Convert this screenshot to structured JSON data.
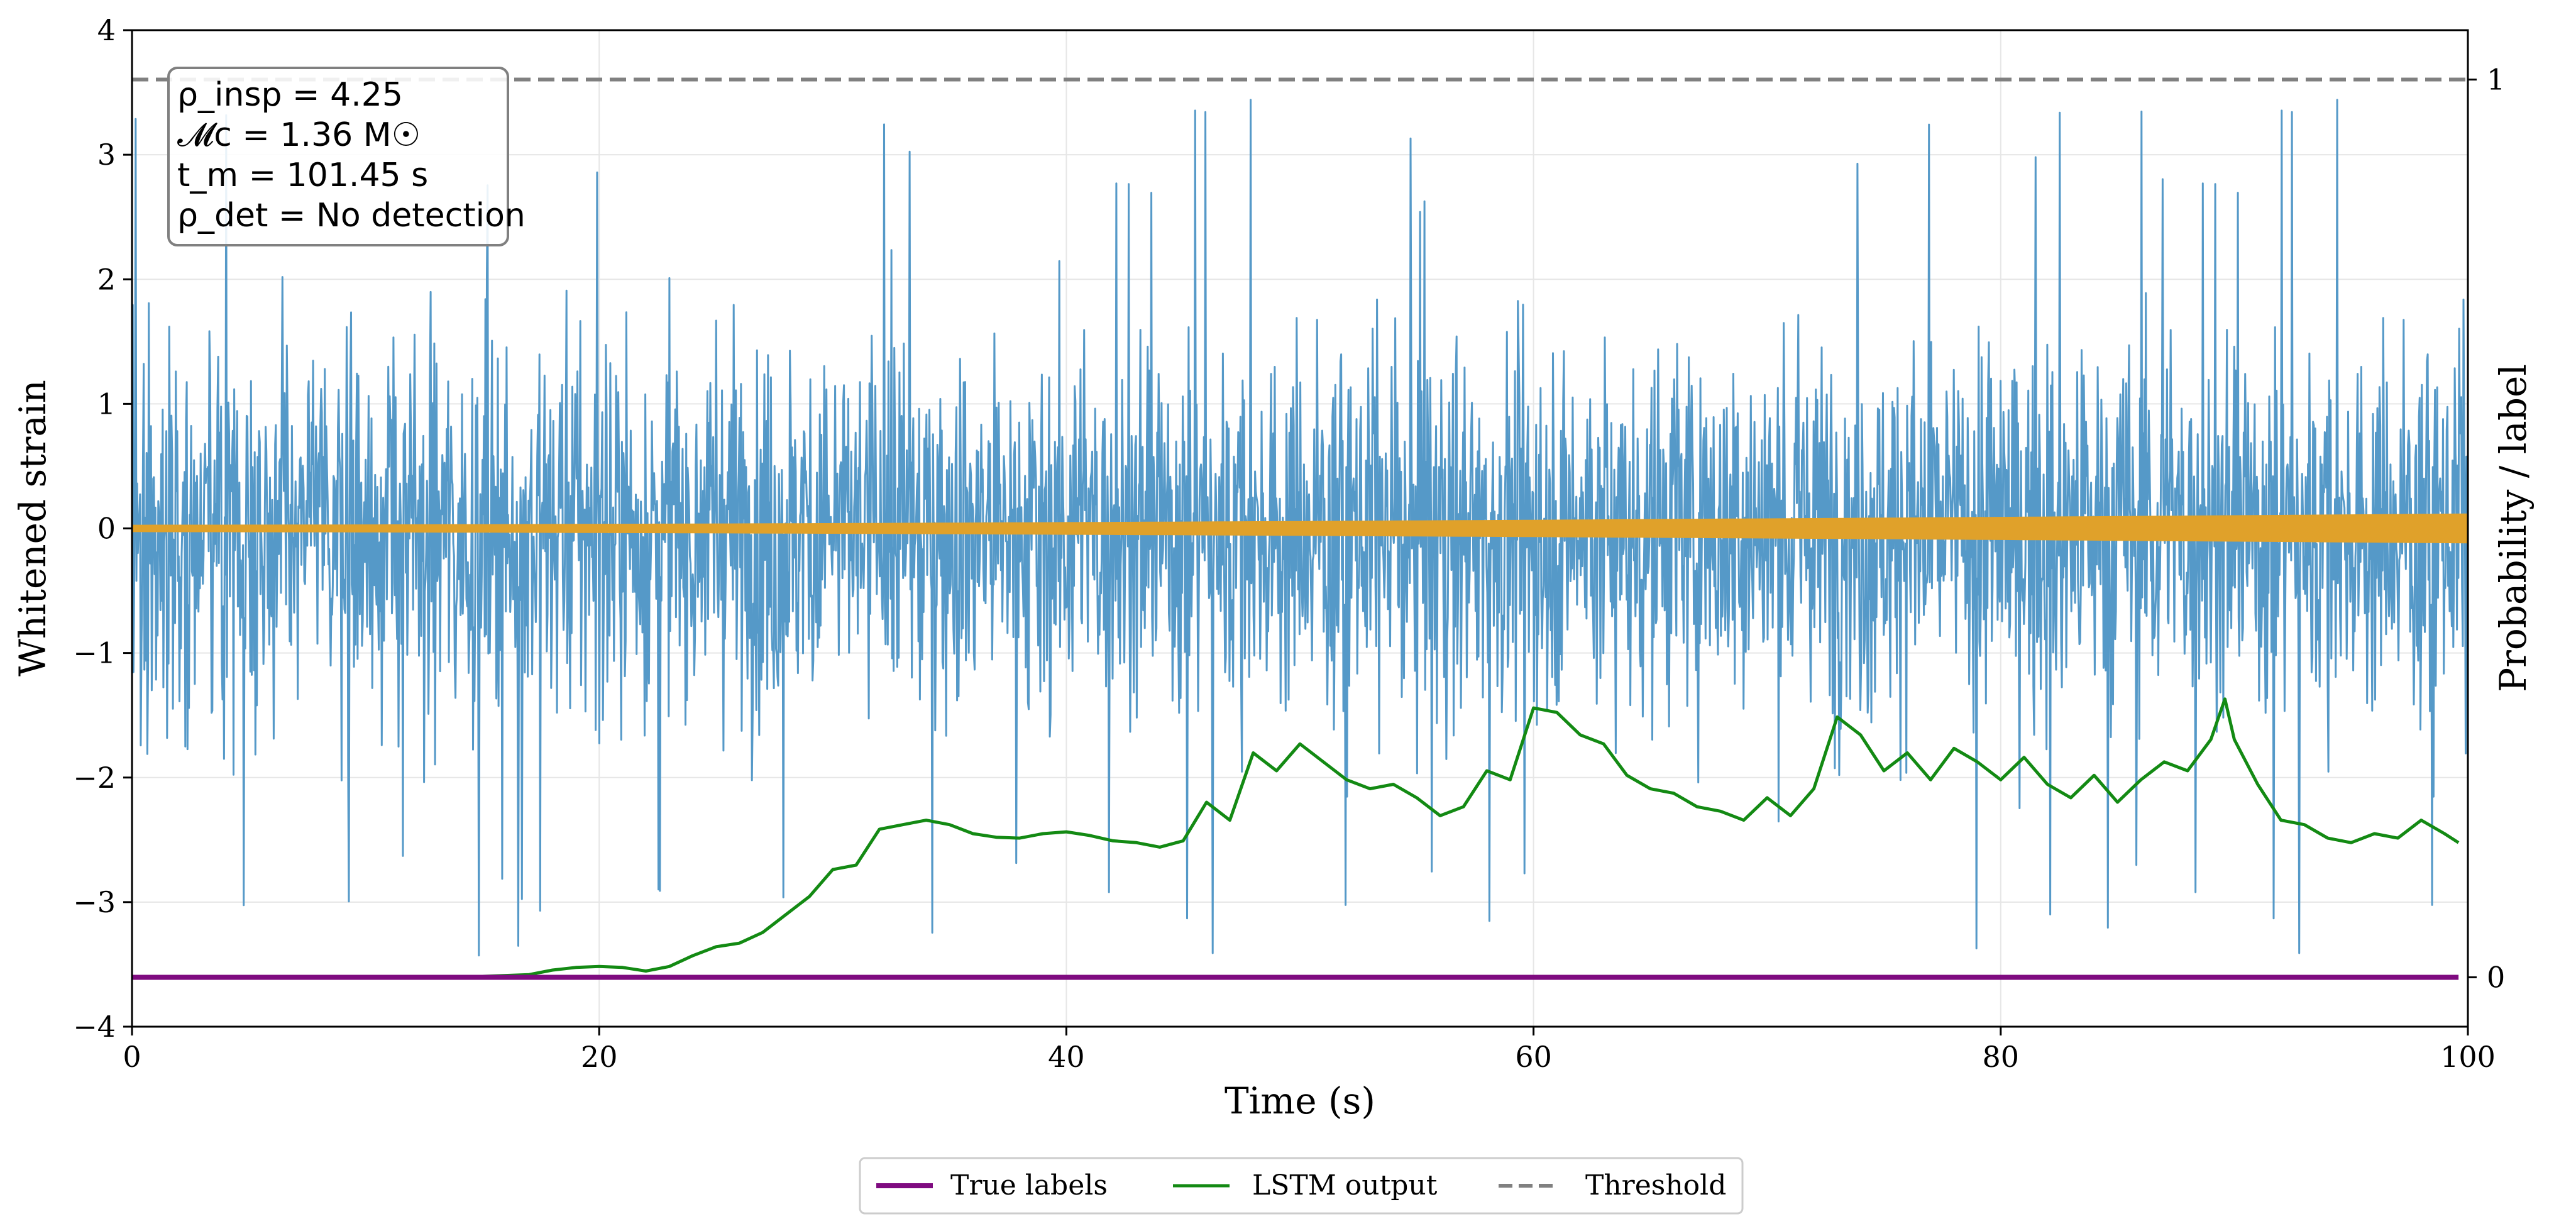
{
  "chart_data": {
    "type": "line",
    "xlabel": "Time (s)",
    "ylabel": "Whitened strain",
    "y2label": "Probability / label",
    "xlim": [
      0,
      100
    ],
    "ylim": [
      -4,
      4
    ],
    "y2lim": [
      -0.055,
      1.055
    ],
    "x_ticks": [
      "0",
      "20",
      "40",
      "60",
      "80",
      "100"
    ],
    "y_ticks": [
      "−4",
      "−3",
      "−2",
      "−1",
      "0",
      "1",
      "2",
      "3",
      "4"
    ],
    "y2_ticks": [
      "0",
      "1"
    ],
    "grid": true,
    "annotation": {
      "rho_insp": "ρ_insp = 4.25",
      "chirp_mass": "𝓜c = 1.36 M☉",
      "merger_time": "t_m = 101.45 s",
      "rho_det": "ρ_det = No detection"
    },
    "legend": [
      "True labels",
      "LSTM output",
      "Threshold"
    ],
    "legend_position": "bottom-center, outside",
    "threshold": 1.0,
    "true_labels_value": 0,
    "noise": {
      "name": "Whitened strain (noise)",
      "color": "#5599c8",
      "typical_abs_max": 2.2,
      "extreme_max": 3.9,
      "extreme_min": -3.6
    },
    "signal": {
      "name": "Injected waveform",
      "color": "#e0a12a",
      "amplitude_start": 0.03,
      "amplitude_end": 0.12
    },
    "series": [
      {
        "name": "LSTM output",
        "color": "#138a13",
        "axis": "right",
        "x": [
          0,
          5,
          10,
          15,
          17,
          18,
          19,
          20,
          21,
          22,
          23,
          24,
          25,
          26,
          27,
          28,
          29,
          30,
          31,
          32,
          33,
          34,
          35,
          36,
          37,
          38,
          39,
          40,
          41,
          42,
          43,
          44,
          45,
          46,
          47,
          48,
          49,
          50,
          51,
          52,
          53,
          54,
          55,
          56,
          57,
          58,
          59,
          60,
          61,
          62,
          63,
          64,
          65,
          66,
          67,
          68,
          69,
          70,
          71,
          72,
          73,
          74,
          75,
          76,
          77,
          78,
          79,
          80,
          81,
          82,
          83,
          84,
          85,
          86,
          87,
          88,
          89,
          89.6,
          90,
          91,
          92,
          93,
          94,
          95,
          96,
          97,
          98,
          99,
          99.6
        ],
        "values": [
          0.0,
          0.0,
          0.0,
          0.001,
          0.003,
          0.008,
          0.011,
          0.012,
          0.011,
          0.007,
          0.012,
          0.024,
          0.034,
          0.038,
          0.05,
          0.07,
          0.09,
          0.12,
          0.125,
          0.165,
          0.17,
          0.175,
          0.17,
          0.16,
          0.156,
          0.155,
          0.16,
          0.162,
          0.158,
          0.152,
          0.15,
          0.145,
          0.152,
          0.195,
          0.175,
          0.25,
          0.23,
          0.26,
          0.24,
          0.22,
          0.21,
          0.215,
          0.2,
          0.18,
          0.19,
          0.23,
          0.22,
          0.3,
          0.295,
          0.27,
          0.26,
          0.225,
          0.21,
          0.205,
          0.19,
          0.185,
          0.175,
          0.2,
          0.18,
          0.21,
          0.29,
          0.27,
          0.23,
          0.25,
          0.22,
          0.255,
          0.24,
          0.22,
          0.245,
          0.215,
          0.2,
          0.225,
          0.195,
          0.22,
          0.24,
          0.23,
          0.265,
          0.31,
          0.265,
          0.215,
          0.175,
          0.17,
          0.155,
          0.15,
          0.16,
          0.155,
          0.175,
          0.16,
          0.15
        ]
      },
      {
        "name": "True labels",
        "color": "#7f0b80",
        "axis": "right",
        "x": [
          0,
          99.6
        ],
        "values": [
          0,
          0
        ]
      },
      {
        "name": "Threshold",
        "color": "#808080",
        "axis": "right",
        "style": "dashed",
        "value": 1.0
      }
    ]
  }
}
